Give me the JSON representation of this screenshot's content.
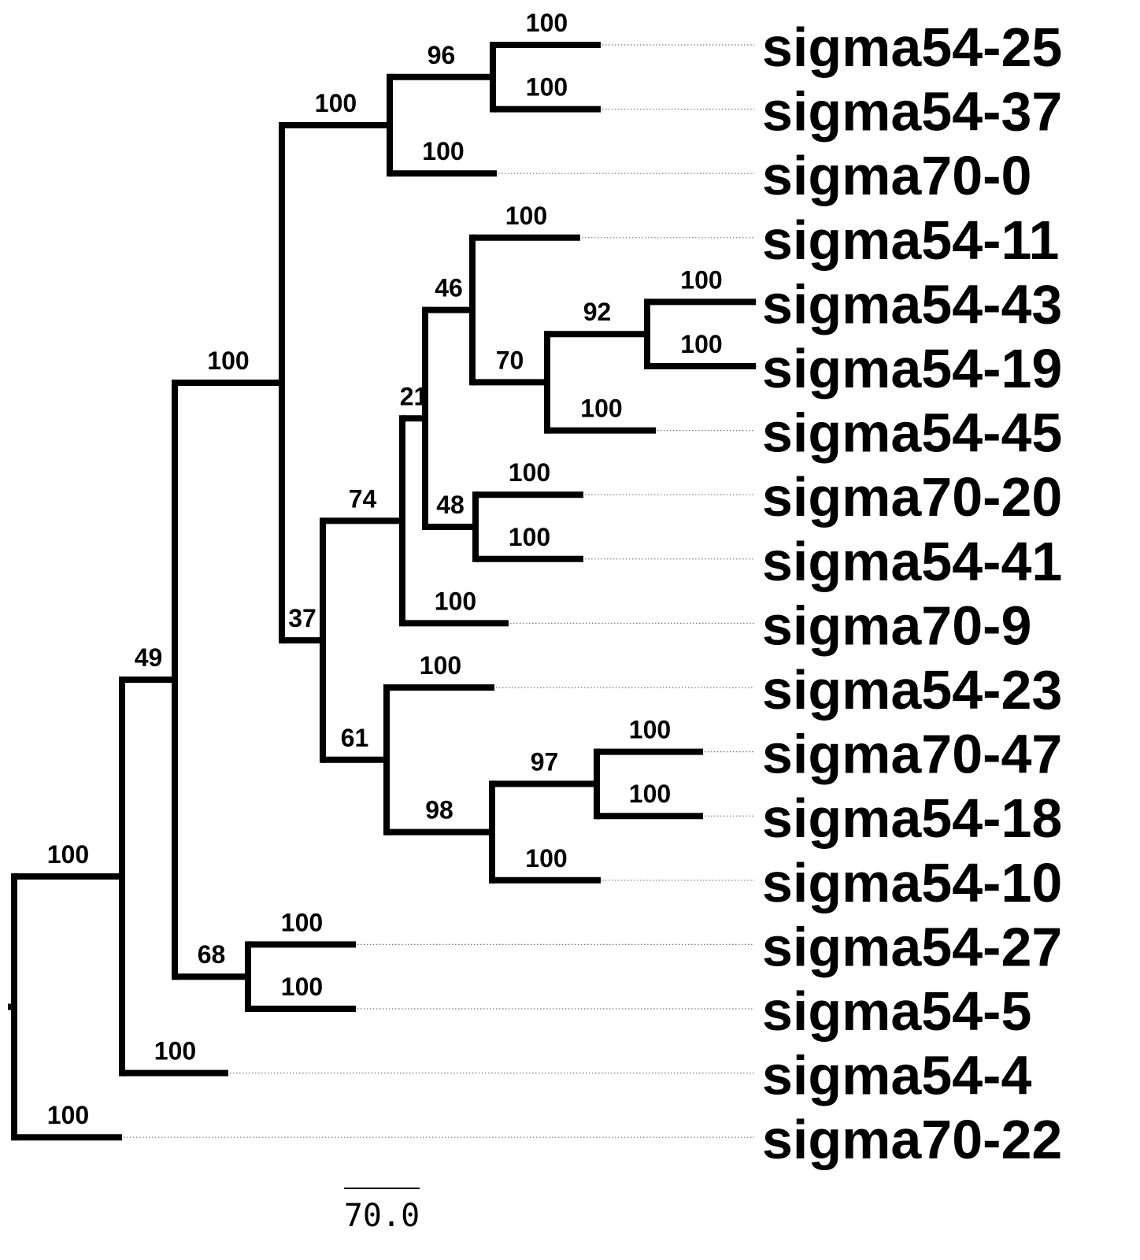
{
  "tree": {
    "nodes": [
      {
        "id": "root",
        "parent": null
      },
      {
        "id": "n1",
        "parent": "root",
        "support": "100"
      },
      {
        "id": "n2",
        "parent": "n1",
        "support": "49"
      },
      {
        "id": "n3",
        "parent": "n2",
        "support": "100"
      },
      {
        "id": "n4",
        "parent": "n3",
        "support": "100"
      },
      {
        "id": "n5",
        "parent": "n4",
        "support": "96"
      },
      {
        "id": "L_sigma54_25",
        "parent": "n5",
        "support": "100",
        "label": "sigma54-25"
      },
      {
        "id": "L_sigma54_37",
        "parent": "n5",
        "support": "100",
        "label": "sigma54-37"
      },
      {
        "id": "L_sigma70_0",
        "parent": "n4",
        "support": "100",
        "label": "sigma70-0"
      },
      {
        "id": "n6",
        "parent": "n3",
        "support": "37"
      },
      {
        "id": "n7",
        "parent": "n6",
        "support": "74"
      },
      {
        "id": "n8",
        "parent": "n7",
        "support": "21"
      },
      {
        "id": "n9",
        "parent": "n8",
        "support": "46"
      },
      {
        "id": "L_sigma54_11",
        "parent": "n9",
        "support": "100",
        "label": "sigma54-11"
      },
      {
        "id": "n10",
        "parent": "n9",
        "support": "70"
      },
      {
        "id": "n11",
        "parent": "n10",
        "support": "92"
      },
      {
        "id": "L_sigma54_43",
        "parent": "n11",
        "support": "100",
        "label": "sigma54-43"
      },
      {
        "id": "L_sigma54_19",
        "parent": "n11",
        "support": "100",
        "label": "sigma54-19"
      },
      {
        "id": "L_sigma54_45",
        "parent": "n10",
        "support": "100",
        "label": "sigma54-45"
      },
      {
        "id": "n12",
        "parent": "n8",
        "support": "48"
      },
      {
        "id": "L_sigma70_20",
        "parent": "n12",
        "support": "100",
        "label": "sigma70-20"
      },
      {
        "id": "L_sigma54_41",
        "parent": "n12",
        "support": "100",
        "label": "sigma54-41"
      },
      {
        "id": "L_sigma70_9",
        "parent": "n7",
        "support": "100",
        "label": "sigma70-9"
      },
      {
        "id": "n13",
        "parent": "n6",
        "support": "61"
      },
      {
        "id": "L_sigma54_23",
        "parent": "n13",
        "support": "100",
        "label": "sigma54-23"
      },
      {
        "id": "n14",
        "parent": "n13",
        "support": "98"
      },
      {
        "id": "n15",
        "parent": "n14",
        "support": "97"
      },
      {
        "id": "L_sigma70_47",
        "parent": "n15",
        "support": "100",
        "label": "sigma70-47"
      },
      {
        "id": "L_sigma54_18",
        "parent": "n15",
        "support": "100",
        "label": "sigma54-18"
      },
      {
        "id": "L_sigma54_10",
        "parent": "n14",
        "support": "100",
        "label": "sigma54-10"
      },
      {
        "id": "n16",
        "parent": "n2",
        "support": "68"
      },
      {
        "id": "L_sigma54_27",
        "parent": "n16",
        "support": "100",
        "label": "sigma54-27"
      },
      {
        "id": "L_sigma54_5",
        "parent": "n16",
        "support": "100",
        "label": "sigma54-5"
      },
      {
        "id": "L_sigma54_4",
        "parent": "n1",
        "support": "100",
        "label": "sigma54-4"
      },
      {
        "id": "L_sigma70_22",
        "parent": "root",
        "support": "100",
        "label": "sigma70-22"
      }
    ]
  },
  "scale_bar": {
    "label": "70.0"
  }
}
